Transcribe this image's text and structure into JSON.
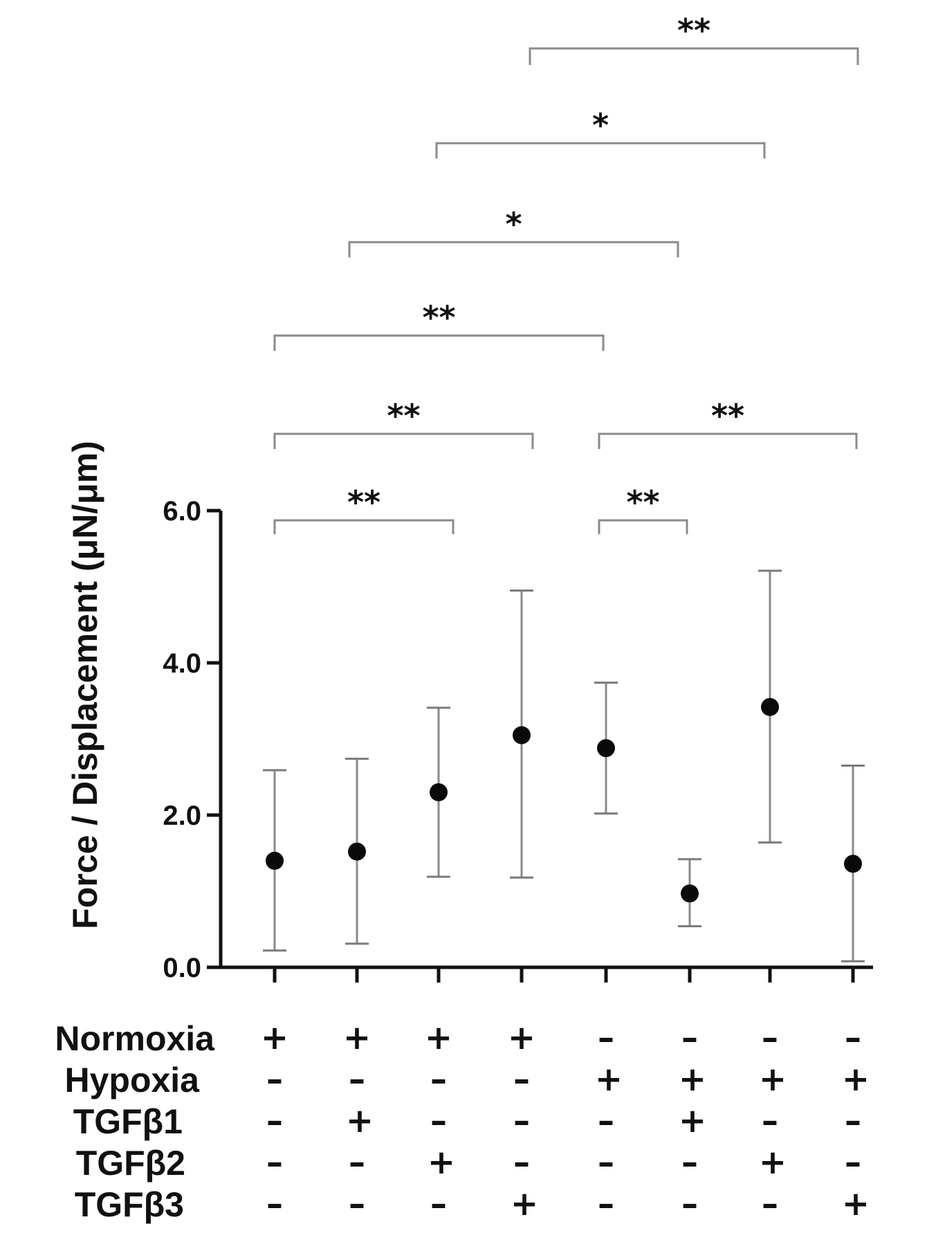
{
  "chart_data": {
    "type": "scatter",
    "title": "",
    "xlabel": "",
    "ylabel": "Force / Displacement (μN/μm)",
    "ylim": [
      0,
      6
    ],
    "yticks": [
      "0.0",
      "2.0",
      "4.0",
      "6.0"
    ],
    "ytick_values": [
      0,
      2,
      4,
      6
    ],
    "groups": 8,
    "means": [
      1.4,
      1.52,
      2.3,
      3.05,
      2.88,
      0.97,
      3.42,
      1.36
    ],
    "lower": [
      0.22,
      0.31,
      1.19,
      1.18,
      2.02,
      0.54,
      1.64,
      0.08
    ],
    "upper": [
      2.59,
      2.74,
      3.41,
      4.95,
      3.74,
      1.42,
      5.21,
      2.65
    ],
    "conditions": [
      {
        "label": "Normoxia",
        "values": [
          "+",
          "+",
          "+",
          "+",
          "–",
          "–",
          "–",
          "–"
        ]
      },
      {
        "label": "Hypoxia",
        "values": [
          "–",
          "–",
          "–",
          "–",
          "+",
          "+",
          "+",
          "+"
        ]
      },
      {
        "label": "TGFβ1",
        "values": [
          "–",
          "+",
          "–",
          "–",
          "–",
          "+",
          "–",
          "–"
        ]
      },
      {
        "label": "TGFβ2",
        "values": [
          "–",
          "–",
          "+",
          "–",
          "–",
          "–",
          "+",
          "–"
        ]
      },
      {
        "label": "TGFβ3",
        "values": [
          "–",
          "–",
          "–",
          "+",
          "–",
          "–",
          "–",
          "+"
        ]
      }
    ],
    "significance": [
      {
        "from": 0,
        "to": 2,
        "label": "**"
      },
      {
        "from": 4,
        "to": 5,
        "label": "**"
      },
      {
        "from": 0,
        "to": 3,
        "label": "**"
      },
      {
        "from": 4,
        "to": 7,
        "label": "**"
      },
      {
        "from": 0,
        "to": 4,
        "label": "**"
      },
      {
        "from": 1,
        "to": 5,
        "label": "*"
      },
      {
        "from": 2,
        "to": 6,
        "label": "*"
      },
      {
        "from": 3,
        "to": 7,
        "label": "**"
      }
    ]
  }
}
